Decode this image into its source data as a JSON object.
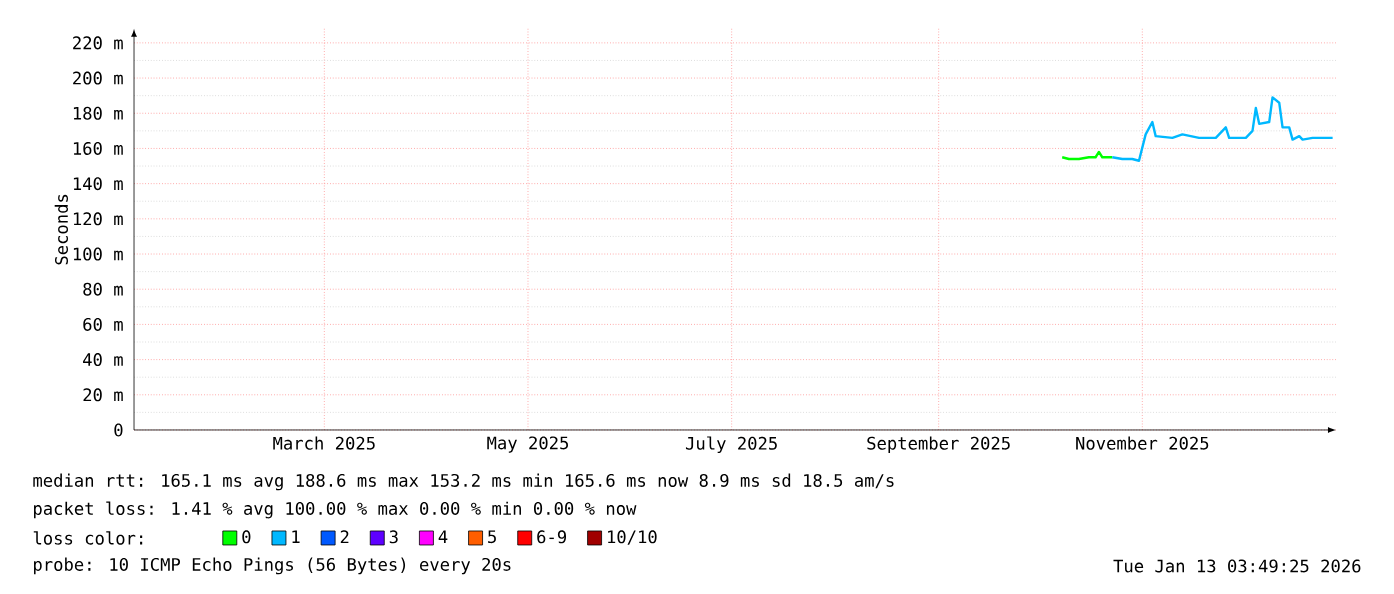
{
  "chart_data": {
    "type": "line",
    "ylabel": "Seconds",
    "legend_title": "loss color:",
    "xlim": [
      "2025-01-18",
      "2026-01-13"
    ],
    "xticks": [
      {
        "value": "2025-03-16",
        "label": "March 2025"
      },
      {
        "value": "2025-05-16",
        "label": "May 2025"
      },
      {
        "value": "2025-07-16",
        "label": "July 2025"
      },
      {
        "value": "2025-09-16",
        "label": "September 2025"
      },
      {
        "value": "2025-11-16",
        "label": "November 2025"
      }
    ],
    "ylim": [
      0,
      228
    ],
    "yticks": [
      {
        "value": 0,
        "label": "0"
      },
      {
        "value": 20,
        "label": "20 m"
      },
      {
        "value": 40,
        "label": "40 m"
      },
      {
        "value": 60,
        "label": "60 m"
      },
      {
        "value": 80,
        "label": "80 m"
      },
      {
        "value": 100,
        "label": "100 m"
      },
      {
        "value": 120,
        "label": "120 m"
      },
      {
        "value": 140,
        "label": "140 m"
      },
      {
        "value": 160,
        "label": "160 m"
      },
      {
        "value": 180,
        "label": "180 m"
      },
      {
        "value": 200,
        "label": "200 m"
      },
      {
        "value": 220,
        "label": "220 m"
      }
    ],
    "grid": true,
    "legend": "bottom",
    "series": [
      {
        "name": "0",
        "color": "#00ff00",
        "x": [
          "2025-10-23",
          "2025-10-25",
          "2025-10-28",
          "2025-10-31",
          "2025-11-02",
          "2025-11-03",
          "2025-11-04",
          "2025-11-07"
        ],
        "values": [
          155,
          154,
          154,
          155,
          155,
          158,
          155,
          155
        ]
      },
      {
        "name": "1",
        "color": "#00b8ff",
        "x": [
          "2025-11-07",
          "2025-11-10",
          "2025-11-13",
          "2025-11-15",
          "2025-11-17",
          "2025-11-19",
          "2025-11-20",
          "2025-11-25",
          "2025-11-28",
          "2025-12-03",
          "2025-12-08",
          "2025-12-11",
          "2025-12-12",
          "2025-12-17",
          "2025-12-19",
          "2025-12-20",
          "2025-12-21",
          "2025-12-24",
          "2025-12-25",
          "2025-12-27",
          "2025-12-28",
          "2025-12-30",
          "2025-12-31",
          "2026-01-02",
          "2026-01-03",
          "2026-01-06",
          "2026-01-12"
        ],
        "values": [
          155,
          154,
          154,
          153,
          168,
          175,
          167,
          166,
          168,
          166,
          166,
          172,
          166,
          166,
          170,
          183,
          174,
          175,
          189,
          186,
          172,
          172,
          165,
          167,
          165,
          166,
          166
        ]
      },
      {
        "name": "2",
        "color": "#0059ff"
      },
      {
        "name": "3",
        "color": "#5e00ff"
      },
      {
        "name": "4",
        "color": "#ff00ff"
      },
      {
        "name": "5",
        "color": "#ff5e00"
      },
      {
        "name": "6-9",
        "color": "#ff0000"
      },
      {
        "name": "10/10",
        "color": "#a10000"
      }
    ],
    "annotations": [
      "median rtt: 165.1 ms avg 188.6 ms max 153.2 ms min 165.6 ms now 8.9 ms sd 18.5 am/s",
      "packet loss: 1.41 % avg 100.00 % max 0.00 % min 0.00 % now",
      "probe: 10 ICMP Echo Pings (56 Bytes) every 20s",
      "Tue Jan 13 03:49:25 2026"
    ]
  }
}
